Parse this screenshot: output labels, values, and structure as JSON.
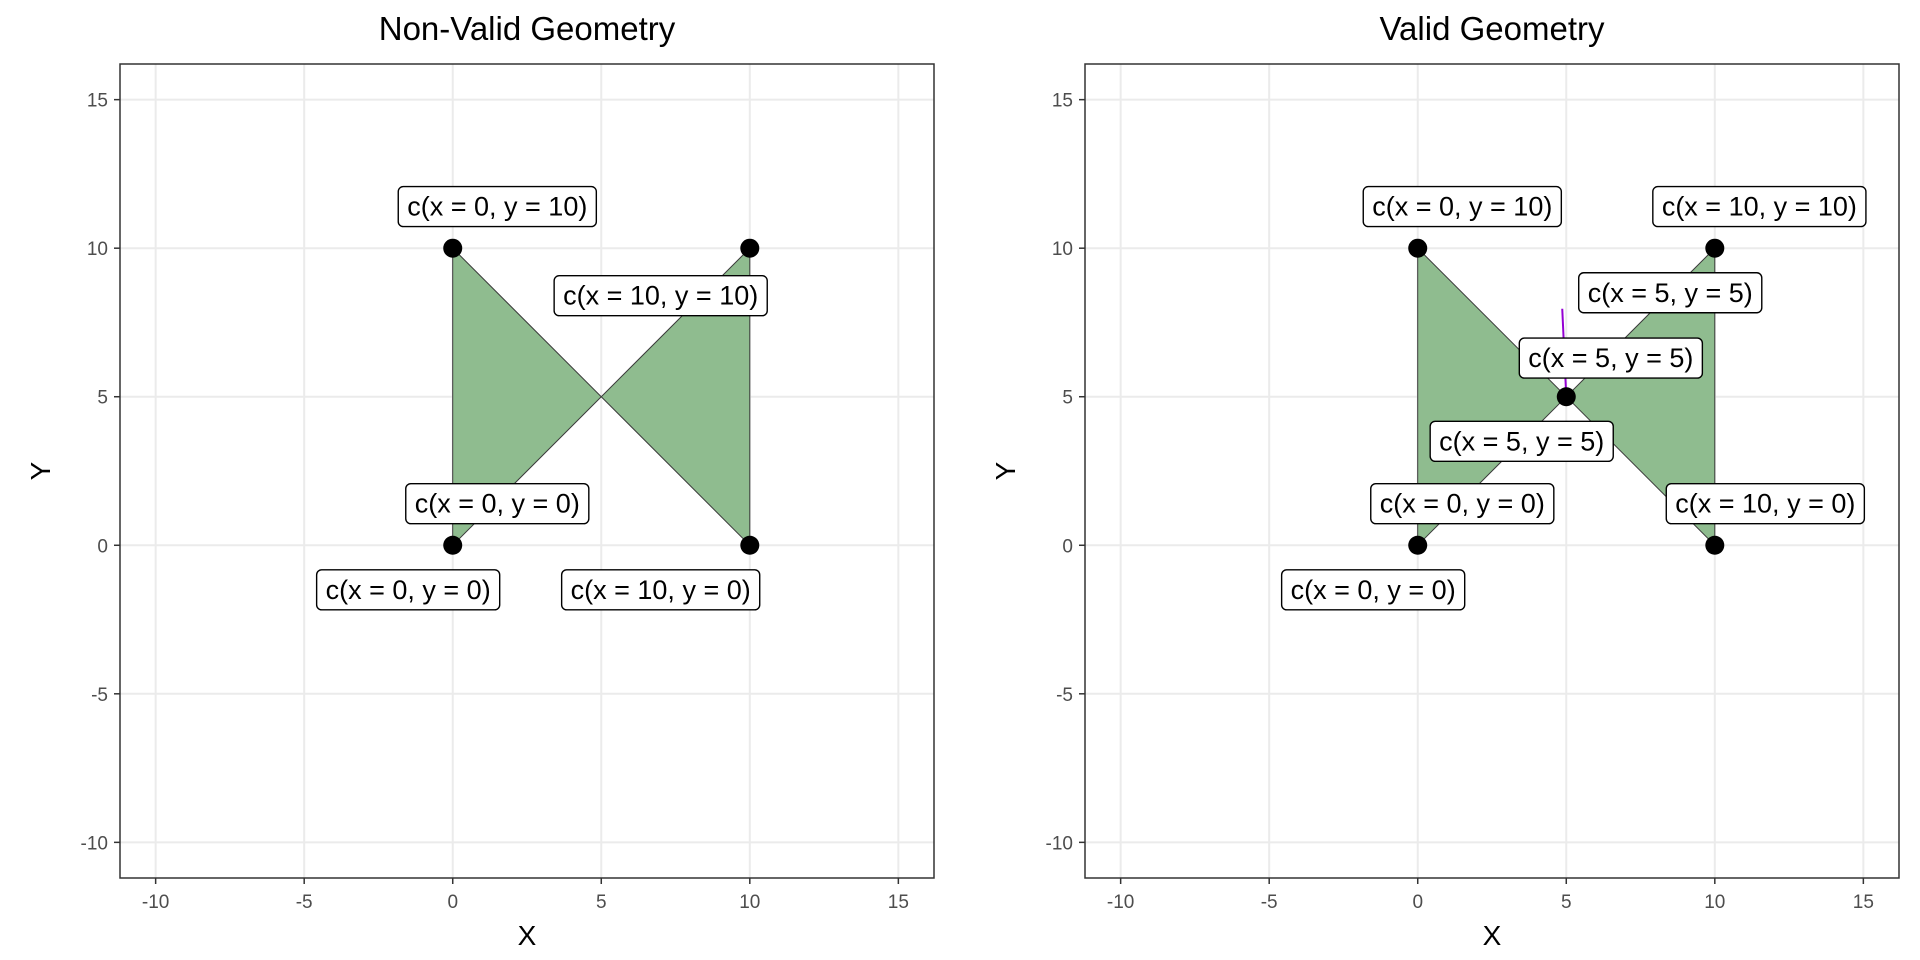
{
  "chart_data": [
    {
      "type": "scatter",
      "title": "Non-Valid Geometry",
      "xlabel": "X",
      "ylabel": "Y",
      "xlim": [
        -11.2,
        16.2
      ],
      "ylim": [
        -11.2,
        16.2
      ],
      "x_ticks": [
        -10,
        -5,
        0,
        5,
        10,
        15
      ],
      "y_ticks": [
        -10,
        -5,
        0,
        5,
        10,
        15
      ],
      "grid": true,
      "colors": {
        "fill": "#8fbc8f",
        "point": "#000000"
      },
      "polygon": [
        [
          0,
          0
        ],
        [
          0,
          10
        ],
        [
          10,
          0
        ],
        [
          10,
          10
        ],
        [
          0,
          0
        ]
      ],
      "points": [
        [
          0,
          0
        ],
        [
          0,
          10
        ],
        [
          10,
          0
        ],
        [
          10,
          10
        ]
      ],
      "labels": [
        {
          "text": "c(x = 0, y = 10)",
          "x": 1.5,
          "y": 11.4,
          "px": 0,
          "py": 10
        },
        {
          "text": "c(x = 10, y = 10)",
          "x": 7.0,
          "y": 8.4,
          "px": 10,
          "py": 10
        },
        {
          "text": "c(x = 0, y = 0)",
          "x": 1.5,
          "y": 1.4,
          "px": 0,
          "py": 0
        },
        {
          "text": "c(x = 0, y = 0)",
          "x": -1.5,
          "y": -1.5,
          "px": 0,
          "py": 0
        },
        {
          "text": "c(x = 10, y = 0)",
          "x": 7.0,
          "y": -1.5,
          "px": 10,
          "py": 0
        }
      ]
    },
    {
      "type": "scatter",
      "title": "Valid Geometry",
      "xlabel": "X",
      "ylabel": "Y",
      "xlim": [
        -11.2,
        16.2
      ],
      "ylim": [
        -11.2,
        16.2
      ],
      "x_ticks": [
        -10,
        -5,
        0,
        5,
        10,
        15
      ],
      "y_ticks": [
        -10,
        -5,
        0,
        5,
        10,
        15
      ],
      "grid": true,
      "colors": {
        "fill": "#8fbc8f",
        "point": "#000000",
        "segment": "#9400d3"
      },
      "polygon": [
        [
          0,
          0
        ],
        [
          0,
          10
        ],
        [
          5,
          5
        ],
        [
          10,
          0
        ],
        [
          10,
          10
        ],
        [
          5,
          5
        ],
        [
          0,
          0
        ]
      ],
      "points": [
        [
          0,
          0
        ],
        [
          0,
          10
        ],
        [
          5,
          5
        ],
        [
          10,
          0
        ],
        [
          10,
          10
        ]
      ],
      "labels": [
        {
          "text": "c(x = 0, y = 10)",
          "x": 1.5,
          "y": 11.4,
          "px": 0,
          "py": 10
        },
        {
          "text": "c(x = 10, y = 10)",
          "x": 11.5,
          "y": 11.4,
          "px": 10,
          "py": 10
        },
        {
          "text": "c(x = 5, y = 5)",
          "x": 8.5,
          "y": 8.5,
          "px": 5,
          "py": 5
        },
        {
          "text": "c(x = 5, y = 5)",
          "x": 6.5,
          "y": 6.3,
          "px": 5,
          "py": 5
        },
        {
          "text": "c(x = 5, y = 5)",
          "x": 3.5,
          "y": 3.5,
          "px": 5,
          "py": 5
        },
        {
          "text": "c(x = 0, y = 0)",
          "x": 1.5,
          "y": 1.4,
          "px": 0,
          "py": 0
        },
        {
          "text": "c(x = 10, y = 0)",
          "x": 11.7,
          "y": 1.4,
          "px": 10,
          "py": 0
        },
        {
          "text": "c(x = 0, y = 0)",
          "x": -1.5,
          "y": -1.5,
          "px": 0,
          "py": 0
        }
      ]
    }
  ]
}
